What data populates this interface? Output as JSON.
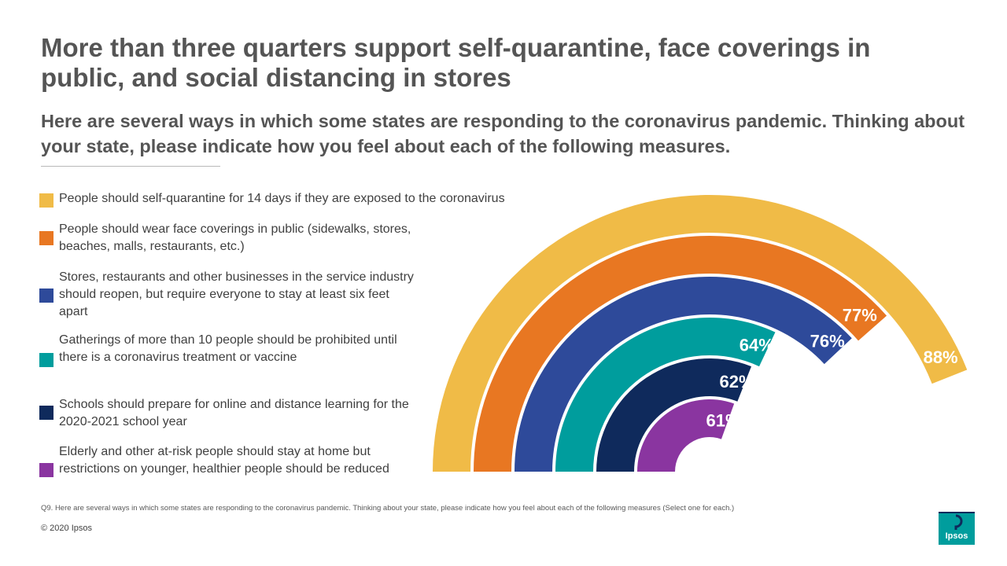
{
  "title": "More than three quarters support self-quarantine, face coverings in public, and social distancing in stores",
  "subtitle": "Here are several ways in which some states are responding to the coronavirus pandemic. Thinking about your state, please indicate how you feel about each of the following measures.",
  "chart_data": {
    "type": "radial-bar",
    "title": "More than three quarters support self-quarantine, face coverings in public, and social distancing in stores",
    "legend_position": "left",
    "max_value": 100,
    "series": [
      {
        "label": "People should self-quarantine for 14 days if they are exposed to the coronavirus",
        "value": 88,
        "value_label": "88%",
        "color": "#f0bb47"
      },
      {
        "label": "People should wear face coverings in public (sidewalks, stores, beaches, malls, restaurants, etc.)",
        "value": 77,
        "value_label": "77%",
        "color": "#e87722"
      },
      {
        "label": "Stores, restaurants and other businesses in the service industry should reopen, but require everyone to stay at least six feet apart",
        "value": 76,
        "value_label": "76%",
        "color": "#2e4a9a"
      },
      {
        "label": "Gatherings of more than  10 people should be prohibited until there is a coronavirus treatment or vaccine",
        "value": 64,
        "value_label": "64%",
        "color": "#009d9d"
      },
      {
        "label": "Schools should prepare for online and distance learning for the 2020-2021 school year",
        "value": 62,
        "value_label": "62%",
        "color": "#0f2a5c"
      },
      {
        "label": "Elderly and other at-risk people should stay at home but restrictions on younger, healthier people should be reduced",
        "value": 61,
        "value_label": "61%",
        "color": "#8a35a0"
      }
    ]
  },
  "footnote": "Q9. Here are several ways in which some states are responding to the coronavirus pandemic. Thinking about your state, please indicate how you feel about each of the following measures (Select one for each.)",
  "copyright": "© 2020 Ipsos",
  "logo_text": "Ipsos"
}
